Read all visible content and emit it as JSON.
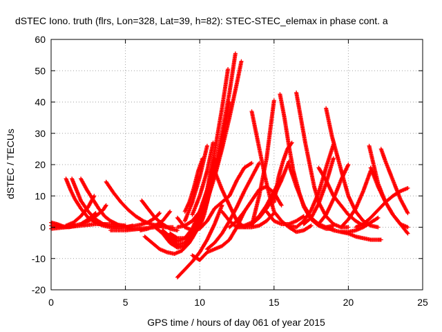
{
  "chart_data": {
    "type": "scatter",
    "title": "dSTEC Iono. truth (flrs, Lon=328, Lat=39, h=82): STEC-STEC_elemax in phase cont. a",
    "xlabel": "GPS time / hours of day 061 of year 2015",
    "ylabel": "dSTEC  / TECUs",
    "xlim": [
      0,
      25
    ],
    "ylim": [
      -20,
      60
    ],
    "xticks": [
      0,
      5,
      10,
      15,
      20,
      25
    ],
    "yticks": [
      -20,
      -10,
      0,
      10,
      20,
      30,
      40,
      50,
      60
    ],
    "grid": true,
    "marker": "plus",
    "color": "#ff0000",
    "series": [
      {
        "x": [
          0.0,
          0.4,
          0.8,
          1.2,
          1.6
        ],
        "y": [
          1.5,
          1.0,
          0.3,
          0.0,
          0.5
        ]
      },
      {
        "x": [
          0.0,
          0.5,
          1.0,
          1.5,
          2.0,
          2.5,
          3.0
        ],
        "y": [
          0.5,
          0.2,
          0.0,
          0.5,
          1.0,
          2.5,
          4.5
        ]
      },
      {
        "x": [
          0.0,
          1.0,
          2.0,
          3.0,
          4.0,
          5.0
        ],
        "y": [
          -0.5,
          0.0,
          0.5,
          1.0,
          1.0,
          0.5
        ]
      },
      {
        "x": [
          1.0,
          1.3,
          1.6,
          2.0,
          2.5,
          3.0,
          3.5,
          4.0,
          4.5,
          5.0
        ],
        "y": [
          15.5,
          12.0,
          9.0,
          6.0,
          3.0,
          1.5,
          0.5,
          0.0,
          0.0,
          0.5
        ]
      },
      {
        "x": [
          1.4,
          1.7,
          2.0,
          2.5,
          3.0,
          3.5,
          4.0,
          4.5,
          5.0,
          5.5
        ],
        "y": [
          15.5,
          12.0,
          8.5,
          5.0,
          2.5,
          1.0,
          0.3,
          0.0,
          0.0,
          0.5
        ]
      },
      {
        "x": [
          2.0,
          2.4,
          2.8,
          3.2,
          3.6,
          4.0,
          4.5,
          5.0,
          5.5,
          6.0
        ],
        "y": [
          15.5,
          12.0,
          9.0,
          6.0,
          3.5,
          2.0,
          0.8,
          0.0,
          -0.5,
          -0.5
        ]
      },
      {
        "x": [
          1.0,
          1.5,
          2.0,
          2.5,
          2.9
        ],
        "y": [
          0.5,
          1.5,
          3.5,
          6.5,
          10.0
        ]
      },
      {
        "x": [
          2.0,
          2.5,
          3.0,
          3.5,
          3.7
        ],
        "y": [
          1.0,
          2.0,
          3.5,
          5.5,
          7.0
        ]
      },
      {
        "x": [
          3.7,
          4.2,
          4.7,
          5.2,
          5.7,
          6.2,
          6.7,
          7.2,
          7.7,
          8.2
        ],
        "y": [
          14.5,
          11.0,
          8.0,
          5.5,
          3.5,
          2.0,
          1.0,
          0.5,
          0.0,
          0.0
        ]
      },
      {
        "x": [
          4.0,
          5.0,
          6.0,
          7.0,
          7.5
        ],
        "y": [
          -1.0,
          -1.0,
          -0.5,
          0.0,
          0.5
        ]
      },
      {
        "x": [
          5.0,
          5.5,
          6.0,
          6.5,
          7.0,
          7.3
        ],
        "y": [
          0.0,
          0.3,
          0.8,
          1.5,
          3.0,
          4.5
        ]
      },
      {
        "x": [
          6.0,
          6.5,
          7.0,
          7.5,
          8.0
        ],
        "y": [
          -1.0,
          -0.5,
          0.5,
          2.0,
          5.0
        ]
      },
      {
        "x": [
          6.1,
          6.5,
          7.0,
          7.5,
          8.0,
          8.5
        ],
        "y": [
          8.5,
          6.0,
          3.0,
          1.0,
          -0.5,
          -1.0
        ]
      },
      {
        "x": [
          6.3,
          6.8,
          7.3,
          7.8,
          8.3,
          8.8,
          9.3,
          9.8
        ],
        "y": [
          -3.0,
          -5.0,
          -7.0,
          -8.0,
          -8.5,
          -7.5,
          -5.0,
          -1.0
        ]
      },
      {
        "x": [
          7.0,
          7.5,
          8.0,
          8.5,
          9.0,
          9.5,
          9.9
        ],
        "y": [
          0.0,
          -2.0,
          -4.0,
          -5.5,
          -5.0,
          -2.0,
          2.0
        ]
      },
      {
        "x": [
          7.5,
          8.0,
          8.5,
          9.0,
          9.5,
          10.0,
          10.5,
          11.0
        ],
        "y": [
          -1.0,
          -3.0,
          -4.5,
          -3.5,
          -0.5,
          5.0,
          12.0,
          22.0
        ]
      },
      {
        "x": [
          7.0,
          7.5,
          8.0,
          8.5,
          9.0,
          9.5,
          10.0,
          10.5,
          11.0,
          11.5,
          11.9
        ],
        "y": [
          0.0,
          -2.0,
          -5.0,
          -6.5,
          -6.0,
          -3.0,
          3.0,
          12.0,
          24.0,
          38.0,
          50.5
        ]
      },
      {
        "x": [
          7.5,
          8.0,
          8.5,
          9.0,
          9.5,
          10.0,
          10.5,
          11.0,
          11.5,
          12.0,
          12.4
        ],
        "y": [
          -1.0,
          -3.5,
          -6.0,
          -6.0,
          -3.5,
          1.0,
          8.0,
          18.0,
          30.0,
          43.0,
          55.5
        ]
      },
      {
        "x": [
          8.0,
          8.5,
          9.0,
          9.5,
          10.0,
          10.5,
          11.0,
          11.5,
          12.0,
          12.5,
          12.8
        ],
        "y": [
          -2.0,
          -3.5,
          -3.5,
          -1.5,
          2.5,
          8.5,
          16.0,
          25.0,
          35.0,
          46.0,
          53.0
        ]
      },
      {
        "x": [
          8.5,
          9.0,
          9.5,
          10.0,
          10.5,
          11.0,
          11.5,
          12.0
        ],
        "y": [
          0.0,
          0.5,
          2.0,
          5.0,
          10.0,
          17.0,
          26.0,
          40.0
        ]
      },
      {
        "x": [
          8.5,
          9.0,
          9.5,
          10.0,
          10.5,
          11.0,
          11.5
        ],
        "y": [
          -16.0,
          -13.5,
          -11.0,
          -8.0,
          -4.0,
          1.0,
          7.0
        ]
      },
      {
        "x": [
          9.5,
          10.0,
          10.5,
          11.0,
          11.5,
          12.0,
          12.5,
          13.0
        ],
        "y": [
          -9.0,
          -10.5,
          -8.0,
          -7.0,
          -6.0,
          -4.0,
          0.0,
          5.0
        ]
      },
      {
        "x": [
          10.5,
          11.0,
          11.5,
          12.0,
          12.5,
          13.0,
          13.5,
          14.0
        ],
        "y": [
          -7.0,
          -5.0,
          -2.0,
          2.0,
          6.5,
          11.5,
          16.0,
          20.5
        ]
      },
      {
        "x": [
          8.5,
          9.0,
          9.5,
          10.0,
          10.5,
          11.0,
          11.5,
          12.0,
          12.5,
          13.0,
          13.5
        ],
        "y": [
          3.0,
          0.0,
          -1.0,
          -0.5,
          2.0,
          6.0,
          8.0,
          10.0,
          15.0,
          19.0,
          20.5
        ]
      },
      {
        "x": [
          9.0,
          9.5,
          10.0,
          10.5
        ],
        "y": [
          2.0,
          8.0,
          16.0,
          26.0
        ]
      },
      {
        "x": [
          9.0,
          9.3,
          9.6,
          9.9,
          10.2
        ],
        "y": [
          5.0,
          8.0,
          12.5,
          18.0,
          22.0
        ]
      },
      {
        "x": [
          9.5,
          10.0,
          10.5,
          10.9
        ],
        "y": [
          4.0,
          10.0,
          18.0,
          27.0
        ]
      },
      {
        "x": [
          10.0,
          10.3,
          10.6,
          11.0
        ],
        "y": [
          0.0,
          4.0,
          10.0,
          19.0
        ]
      },
      {
        "x": [
          11.0,
          11.5,
          12.0,
          12.5,
          13.0,
          13.5,
          14.0,
          14.5,
          15.0
        ],
        "y": [
          18.0,
          12.0,
          7.0,
          2.0,
          0.0,
          0.0,
          0.5,
          2.0,
          4.5
        ]
      },
      {
        "x": [
          11.5,
          12.0,
          12.5,
          13.0,
          13.5,
          14.0,
          14.5,
          15.0,
          15.5,
          16.0
        ],
        "y": [
          5.0,
          2.0,
          0.0,
          0.0,
          1.0,
          3.0,
          6.0,
          10.0,
          15.0,
          21.0
        ]
      },
      {
        "x": [
          12.5,
          13.0,
          13.5,
          14.0,
          14.5,
          15.0,
          15.5
        ],
        "y": [
          0.0,
          0.5,
          1.5,
          3.5,
          7.0,
          11.5,
          16.0
        ]
      },
      {
        "x": [
          13.5,
          13.8,
          14.1,
          14.4,
          14.7,
          15.0,
          15.5,
          16.0,
          16.5,
          17.0,
          17.5
        ],
        "y": [
          37.0,
          30.0,
          23.0,
          16.0,
          10.0,
          5.0,
          2.0,
          0.0,
          -1.5,
          -1.0,
          0.5
        ]
      },
      {
        "x": [
          13.5,
          14.0,
          14.5,
          15.0
        ],
        "y": [
          0.5,
          10.0,
          22.0,
          40.5
        ]
      },
      {
        "x": [
          12.0,
          12.5,
          13.0,
          13.5,
          14.0,
          14.5,
          15.0,
          15.5
        ],
        "y": [
          0.0,
          2.0,
          5.0,
          8.5,
          12.0,
          13.0,
          11.0,
          7.0
        ]
      },
      {
        "x": [
          15.4,
          15.7,
          16.0,
          16.3,
          16.7,
          17.0,
          17.5,
          18.0,
          18.5,
          19.0
        ],
        "y": [
          42.5,
          35.0,
          26.0,
          18.0,
          11.0,
          6.5,
          2.5,
          0.5,
          -0.5,
          -0.5
        ]
      },
      {
        "x": [
          15.0,
          15.3,
          15.6,
          15.9,
          16.2
        ],
        "y": [
          8.0,
          16.0,
          21.0,
          25.0,
          27.0
        ]
      },
      {
        "x": [
          14.5,
          15.0,
          15.5,
          16.0,
          16.5,
          17.0
        ],
        "y": [
          5.0,
          2.0,
          1.0,
          1.0,
          2.0,
          3.5
        ]
      },
      {
        "x": [
          16.5,
          16.8,
          17.1,
          17.4,
          17.7,
          18.0,
          18.5,
          19.0,
          19.5,
          20.0
        ],
        "y": [
          43.0,
          35.0,
          27.0,
          20.0,
          13.0,
          8.0,
          3.5,
          1.0,
          0.0,
          0.0
        ]
      },
      {
        "x": [
          16.0,
          16.5,
          17.0,
          17.5,
          18.0,
          18.5,
          19.0
        ],
        "y": [
          20.0,
          13.0,
          7.0,
          3.0,
          1.0,
          0.0,
          0.5
        ]
      },
      {
        "x": [
          16.0,
          16.5,
          17.0,
          17.5,
          18.0,
          18.5,
          19.0
        ],
        "y": [
          0.5,
          0.0,
          2.0,
          5.5,
          11.0,
          19.0,
          26.5
        ]
      },
      {
        "x": [
          17.0,
          17.5,
          18.0,
          18.5,
          19.0
        ],
        "y": [
          1.0,
          3.0,
          7.5,
          14.0,
          22.0
        ]
      },
      {
        "x": [
          18.5,
          18.9,
          19.3,
          19.7,
          20.0,
          20.5,
          21.0,
          21.5,
          22.0
        ],
        "y": [
          38.0,
          29.0,
          22.0,
          15.0,
          10.0,
          5.0,
          2.0,
          0.5,
          0.0
        ]
      },
      {
        "x": [
          18.0,
          18.5,
          19.0,
          19.5,
          20.0,
          20.5,
          21.0
        ],
        "y": [
          19.0,
          15.0,
          10.0,
          7.0,
          4.0,
          2.0,
          0.5
        ]
      },
      {
        "x": [
          18.0,
          18.5,
          19.0,
          19.5,
          20.0
        ],
        "y": [
          1.0,
          4.0,
          9.0,
          15.0,
          20.0
        ]
      },
      {
        "x": [
          18.5,
          19.0,
          19.5,
          20.0,
          20.5,
          21.0,
          21.5,
          22.0
        ],
        "y": [
          0.0,
          -1.0,
          -1.5,
          -1.5,
          -1.0,
          0.0,
          1.5,
          3.0
        ]
      },
      {
        "x": [
          19.5,
          20.0,
          20.5,
          21.0,
          21.5,
          22.0,
          22.2
        ],
        "y": [
          -1.5,
          -2.0,
          -3.0,
          -3.5,
          -4.0,
          -4.0,
          -4.0
        ]
      },
      {
        "x": [
          21.4,
          21.7,
          22.0,
          22.5,
          23.0,
          23.5,
          24.0
        ],
        "y": [
          26.0,
          20.0,
          14.0,
          8.0,
          4.0,
          1.0,
          0.0
        ]
      },
      {
        "x": [
          21.5,
          22.0,
          22.5,
          23.0,
          23.5,
          24.0
        ],
        "y": [
          19.0,
          13.0,
          8.0,
          4.0,
          1.0,
          -2.0
        ]
      },
      {
        "x": [
          22.2,
          22.5,
          23.0,
          23.5,
          24.0
        ],
        "y": [
          25.0,
          21.0,
          15.0,
          9.0,
          4.5
        ]
      },
      {
        "x": [
          20.5,
          21.0,
          21.5,
          22.0,
          22.5,
          23.0,
          23.5,
          24.0
        ],
        "y": [
          0.0,
          1.0,
          3.0,
          5.5,
          8.0,
          10.0,
          11.5,
          12.5
        ]
      },
      {
        "x": [
          19.5,
          20.0,
          20.5,
          21.0,
          21.5
        ],
        "y": [
          0.0,
          2.5,
          6.0,
          11.5,
          18.0
        ]
      }
    ]
  }
}
